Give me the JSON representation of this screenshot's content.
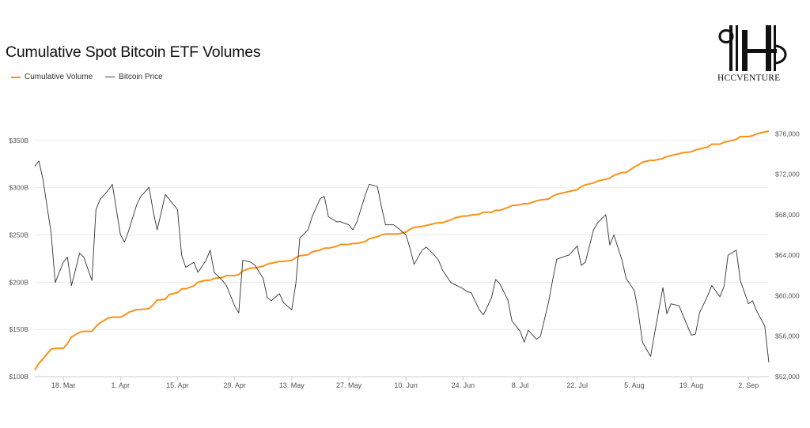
{
  "chart_data": {
    "type": "line",
    "title": "Cumulative Spot Bitcoin ETF Volumes",
    "brand": "HCCVENTURE",
    "colors": {
      "cumulative": "#f7931a",
      "price": "#333333",
      "grid": "#ebebeb",
      "axis_text": "#555555"
    },
    "x_ticks": [
      "18. Mar",
      "1. Apr",
      "15. Apr",
      "29. Apr",
      "13. May",
      "27. May",
      "10. Jun",
      "24. Jun",
      "8. Jul",
      "22. Jul",
      "5. Aug",
      "19. Aug",
      "2. Sep"
    ],
    "x_tick_days": [
      18,
      32,
      46,
      60,
      74,
      88,
      102,
      116,
      130,
      144,
      158,
      172,
      186
    ],
    "x_range_days": [
      11,
      191
    ],
    "left_axis": {
      "ticks": [
        "$100B",
        "$150B",
        "$200B",
        "$250B",
        "$300B",
        "$350B"
      ],
      "values": [
        100,
        150,
        200,
        250,
        300,
        350
      ],
      "range": [
        100,
        400
      ]
    },
    "right_axis": {
      "ticks": [
        "$52,000",
        "$56,000",
        "$60,000",
        "$64,000",
        "$68,000",
        "$72,000",
        "$76,000"
      ],
      "values": [
        52000,
        56000,
        60000,
        64000,
        68000,
        72000,
        76000
      ],
      "range": [
        52000,
        80000
      ]
    },
    "series": [
      {
        "name": "Cumulative Volume",
        "axis": "left",
        "x_days": [
          11,
          12,
          13,
          15,
          16,
          18,
          19,
          20,
          22,
          23,
          25,
          26,
          27,
          29,
          30,
          32,
          33,
          34,
          36,
          37,
          39,
          40,
          41,
          43,
          44,
          46,
          47,
          48,
          50,
          51,
          53,
          54,
          55,
          57,
          58,
          60,
          61,
          62,
          64,
          65,
          67,
          68,
          69,
          71,
          72,
          74,
          75,
          76,
          78,
          79,
          81,
          82,
          83,
          85,
          86,
          88,
          89,
          90,
          92,
          93,
          95,
          96,
          97,
          99,
          100,
          102,
          103,
          104,
          106,
          107,
          109,
          110,
          111,
          113,
          114,
          116,
          117,
          118,
          120,
          121,
          123,
          124,
          125,
          127,
          128,
          130,
          131,
          132,
          134,
          135,
          137,
          138,
          139,
          141,
          142,
          144,
          145,
          146,
          148,
          149,
          151,
          152,
          153,
          155,
          156,
          158,
          159,
          160,
          162,
          163,
          165,
          166,
          167,
          169,
          170,
          172,
          173,
          174,
          176,
          177,
          179,
          180,
          181,
          183,
          184,
          186,
          187,
          188,
          190,
          191
        ],
        "values": [
          107,
          114,
          119,
          129,
          130,
          130,
          135,
          142,
          147,
          148,
          148,
          153,
          157,
          162,
          163,
          163,
          165,
          168,
          171,
          171,
          172,
          176,
          181,
          182,
          187,
          189,
          193,
          193,
          196,
          200,
          202,
          202,
          204,
          205,
          207,
          207,
          208,
          212,
          215,
          215,
          217,
          219,
          220,
          222,
          222,
          223,
          226,
          228,
          229,
          232,
          234,
          236,
          236,
          238,
          240,
          240,
          241,
          241,
          243,
          246,
          248,
          250,
          251,
          251,
          251,
          253,
          256,
          258,
          259,
          260,
          262,
          263,
          263,
          266,
          268,
          270,
          270,
          271,
          272,
          274,
          274,
          276,
          276,
          279,
          281,
          282,
          283,
          283,
          286,
          287,
          288,
          291,
          293,
          295,
          296,
          298,
          301,
          303,
          305,
          307,
          309,
          310,
          313,
          316,
          316,
          322,
          324,
          327,
          329,
          329,
          331,
          333,
          334,
          336,
          337,
          338,
          340,
          341,
          343,
          346,
          346,
          348,
          349,
          351,
          354,
          354,
          355,
          357,
          359,
          360
        ]
      },
      {
        "name": "Bitcoin Price",
        "axis": "right",
        "x_days": [
          11,
          12,
          13,
          15,
          16,
          18,
          19,
          20,
          22,
          23,
          25,
          26,
          27,
          29,
          30,
          32,
          33,
          34,
          36,
          37,
          39,
          40,
          41,
          43,
          44,
          46,
          47,
          48,
          50,
          51,
          53,
          54,
          55,
          57,
          58,
          60,
          61,
          62,
          64,
          65,
          67,
          68,
          69,
          71,
          72,
          74,
          75,
          76,
          78,
          79,
          81,
          82,
          83,
          85,
          86,
          88,
          89,
          90,
          92,
          93,
          95,
          96,
          97,
          99,
          100,
          102,
          103,
          104,
          106,
          107,
          109,
          110,
          111,
          113,
          114,
          116,
          117,
          118,
          120,
          121,
          123,
          124,
          125,
          127,
          128,
          130,
          131,
          132,
          134,
          135,
          137,
          138,
          139,
          141,
          142,
          144,
          145,
          146,
          148,
          149,
          151,
          152,
          153,
          155,
          156,
          158,
          159,
          160,
          162,
          163,
          165,
          166,
          167,
          169,
          170,
          172,
          173,
          174,
          176,
          177,
          179,
          180,
          181,
          183,
          184,
          186,
          187,
          188,
          190,
          191
        ],
        "values": [
          72800,
          73300,
          71500,
          66200,
          61300,
          63300,
          63800,
          61000,
          64200,
          63800,
          61500,
          68500,
          69500,
          70400,
          71000,
          66000,
          65300,
          66400,
          69000,
          69800,
          70700,
          68400,
          66500,
          70000,
          69500,
          68500,
          64000,
          62800,
          63300,
          62300,
          63500,
          64500,
          62300,
          61500,
          61000,
          59000,
          58300,
          63500,
          63300,
          63000,
          61700,
          59800,
          59500,
          60200,
          59300,
          58600,
          61200,
          65700,
          66500,
          67800,
          69600,
          69800,
          67800,
          67300,
          67300,
          67000,
          66500,
          67300,
          69900,
          71000,
          70800,
          68800,
          67000,
          67000,
          66700,
          66000,
          64700,
          63100,
          64500,
          64800,
          64000,
          63500,
          62500,
          61300,
          61100,
          60700,
          60400,
          60300,
          58600,
          58100,
          59800,
          61600,
          61200,
          59600,
          57500,
          56500,
          55400,
          56600,
          55700,
          56000,
          59400,
          61600,
          63600,
          63900,
          64000,
          64900,
          63000,
          63300,
          66500,
          67200,
          68000,
          65000,
          66000,
          63500,
          61700,
          60500,
          58300,
          55400,
          54000,
          56300,
          60800,
          58200,
          59200,
          59000,
          58000,
          56100,
          56200,
          58300,
          60000,
          61000,
          59900,
          60900,
          64000,
          64500,
          61500,
          59200,
          59500,
          58500,
          57000,
          53400
        ]
      }
    ]
  }
}
